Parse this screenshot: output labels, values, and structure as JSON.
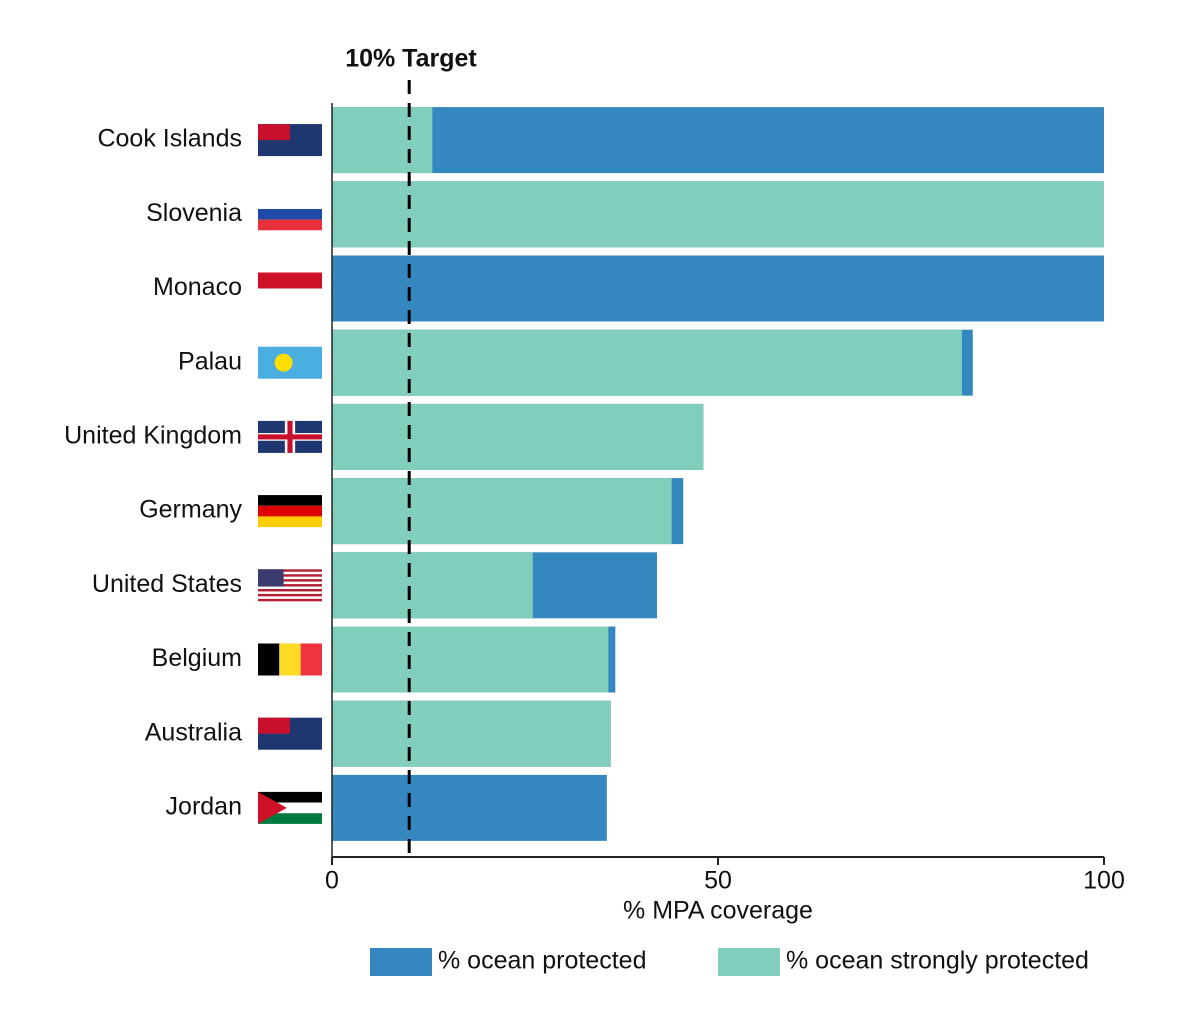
{
  "chart_data": {
    "type": "bar",
    "orientation": "horizontal",
    "overlap": true,
    "categories": [
      "Cook Islands",
      "Slovenia",
      "Monaco",
      "Palau",
      "United Kingdom",
      "Germany",
      "United States",
      "Belgium",
      "Australia",
      "Jordan"
    ],
    "series": [
      {
        "name": "% ocean protected",
        "color": "#3588bf",
        "values": [
          100,
          100,
          100,
          83.0,
          48.1,
          45.5,
          42.1,
          36.7,
          36.1,
          35.6
        ]
      },
      {
        "name": "% ocean strongly protected",
        "color": "#80cebb",
        "values": [
          13.0,
          100,
          0,
          81.6,
          48.1,
          44.0,
          26.0,
          35.8,
          36.1,
          0
        ]
      }
    ],
    "xlabel": "% MPA coverage",
    "xlim": [
      0,
      100
    ],
    "xticks": [
      0,
      50,
      100
    ],
    "reference_line": {
      "value": 10,
      "label": "10% Target"
    },
    "legend": "bottom"
  }
}
